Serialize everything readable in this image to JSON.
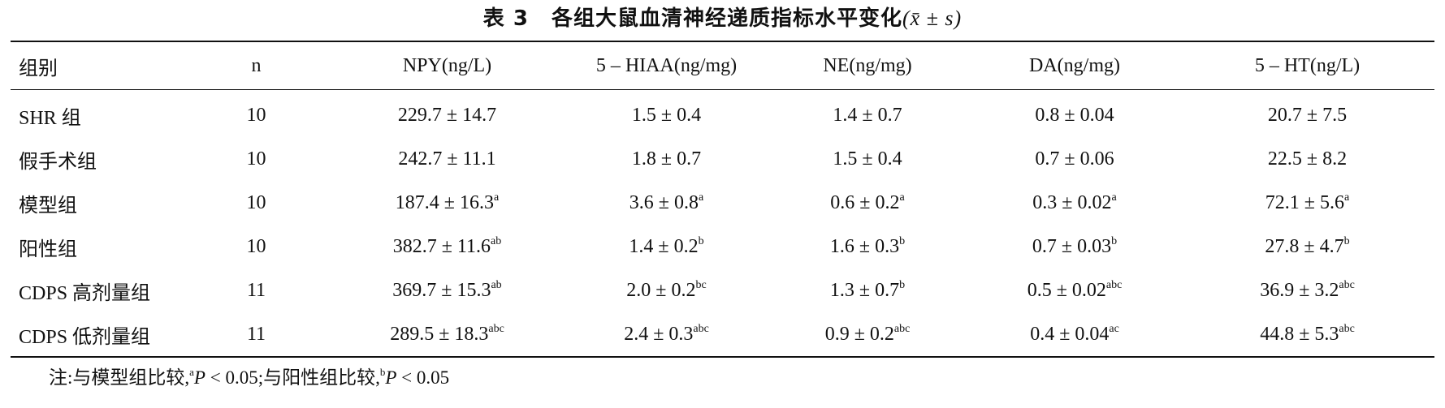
{
  "caption": {
    "number": "表 3",
    "title": "各组大鼠血清神经递质指标水平变化",
    "stat_label": "(x̄ ± s)"
  },
  "table": {
    "headers": [
      "组别",
      "n",
      "NPY(ng/L)",
      "5 – HIAA(ng/mg)",
      "NE(ng/mg)",
      "DA(ng/mg)",
      "5 – HT(ng/L)"
    ],
    "rows": [
      {
        "group": "SHR 组",
        "n": "10",
        "cells": [
          {
            "v": "229.7 ± 14.7",
            "s": ""
          },
          {
            "v": "1.5 ± 0.4",
            "s": ""
          },
          {
            "v": "1.4 ± 0.7",
            "s": ""
          },
          {
            "v": "0.8 ± 0.04",
            "s": ""
          },
          {
            "v": "20.7 ± 7.5",
            "s": ""
          }
        ]
      },
      {
        "group": "假手术组",
        "n": "10",
        "cells": [
          {
            "v": "242.7 ± 11.1",
            "s": ""
          },
          {
            "v": "1.8 ± 0.7",
            "s": ""
          },
          {
            "v": "1.5 ± 0.4",
            "s": ""
          },
          {
            "v": "0.7 ± 0.06",
            "s": ""
          },
          {
            "v": "22.5 ± 8.2",
            "s": ""
          }
        ]
      },
      {
        "group": "模型组",
        "n": "10",
        "cells": [
          {
            "v": "187.4 ± 16.3",
            "s": "a"
          },
          {
            "v": "3.6 ± 0.8",
            "s": "a"
          },
          {
            "v": "0.6 ± 0.2",
            "s": "a"
          },
          {
            "v": "0.3 ± 0.02",
            "s": "a"
          },
          {
            "v": "72.1 ± 5.6",
            "s": "a"
          }
        ]
      },
      {
        "group": "阳性组",
        "n": "10",
        "cells": [
          {
            "v": "382.7 ± 11.6",
            "s": "ab"
          },
          {
            "v": "1.4 ± 0.2",
            "s": "b"
          },
          {
            "v": "1.6 ± 0.3",
            "s": "b"
          },
          {
            "v": "0.7 ± 0.03",
            "s": "b"
          },
          {
            "v": "27.8 ± 4.7",
            "s": "b"
          }
        ]
      },
      {
        "group": "CDPS 高剂量组",
        "n": "11",
        "cells": [
          {
            "v": "369.7 ± 15.3",
            "s": "ab"
          },
          {
            "v": "2.0 ± 0.2",
            "s": "bc"
          },
          {
            "v": "1.3 ± 0.7",
            "s": "b"
          },
          {
            "v": "0.5 ± 0.02",
            "s": "abc"
          },
          {
            "v": "36.9 ± 3.2",
            "s": "abc"
          }
        ]
      },
      {
        "group": "CDPS 低剂量组",
        "n": "11",
        "cells": [
          {
            "v": "289.5 ± 18.3",
            "s": "abc"
          },
          {
            "v": "2.4 ± 0.3",
            "s": "abc"
          },
          {
            "v": "0.9 ± 0.2",
            "s": "abc"
          },
          {
            "v": "0.4 ± 0.04",
            "s": "ac"
          },
          {
            "v": "44.8 ± 5.3",
            "s": "abc"
          }
        ]
      }
    ]
  },
  "note": {
    "prefix": "注:与模型组比较,",
    "sup1": "a",
    "p1": "P",
    "val1": " < 0.05;与阳性组比较,",
    "sup2": "b",
    "p2": "P",
    "val2": " < 0.05"
  }
}
